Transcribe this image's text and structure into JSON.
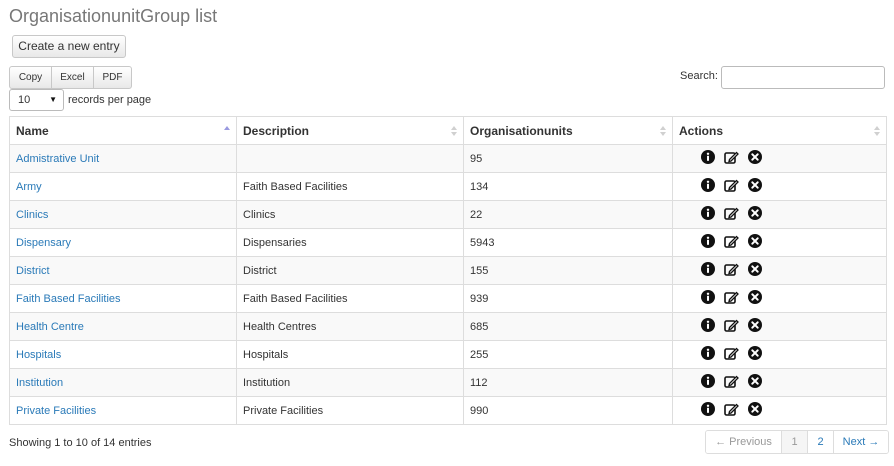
{
  "title": "OrganisationunitGroup list",
  "create_label": "Create a new entry",
  "export": {
    "copy": "Copy",
    "excel": "Excel",
    "pdf": "PDF"
  },
  "search": {
    "label": "Search:",
    "value": ""
  },
  "length": {
    "value": "10",
    "label": "records per page"
  },
  "columns": {
    "name": "Name",
    "description": "Description",
    "units": "Organisationunits",
    "actions": "Actions"
  },
  "rows": [
    {
      "name": "Admistrative Unit",
      "description": "",
      "units": "95"
    },
    {
      "name": "Army",
      "description": "Faith Based Facilities",
      "units": "134"
    },
    {
      "name": "Clinics",
      "description": "Clinics",
      "units": "22"
    },
    {
      "name": "Dispensary",
      "description": "Dispensaries",
      "units": "5943"
    },
    {
      "name": "District",
      "description": "District",
      "units": "155"
    },
    {
      "name": "Faith Based Facilities",
      "description": "Faith Based Facilities",
      "units": "939"
    },
    {
      "name": "Health Centre",
      "description": "Health Centres",
      "units": "685"
    },
    {
      "name": "Hospitals",
      "description": "Hospitals",
      "units": "255"
    },
    {
      "name": "Institution",
      "description": "Institution",
      "units": "112"
    },
    {
      "name": "Private Facilities",
      "description": "Private Facilities",
      "units": "990"
    }
  ],
  "action_icons": [
    "info-icon",
    "edit-icon",
    "delete-icon"
  ],
  "info_text": "Showing 1 to 10 of 14 entries",
  "pagination": {
    "prev": "← Previous",
    "page1": "1",
    "page2": "2",
    "next": "Next →"
  },
  "colors": {
    "link": "#2a7ab8",
    "title": "#777777"
  }
}
